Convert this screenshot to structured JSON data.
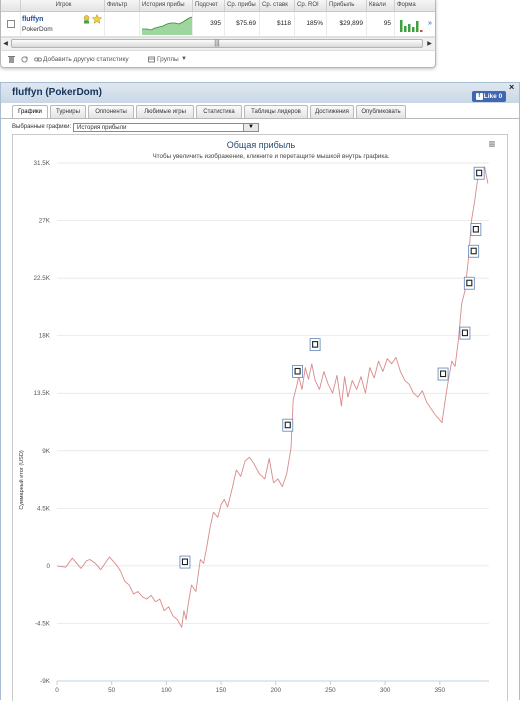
{
  "grid": {
    "headers": [
      "Игрок",
      "Фильтр",
      "История прибы",
      "Подсчет",
      "Ср. прибы",
      "Ср. ставк",
      "Ср. ROI",
      "Прибыль",
      "Квали",
      "Форма"
    ],
    "row": {
      "player_name": "fluffyn",
      "room": "PokerDom",
      "count": "395",
      "avg_profit": "$75.69",
      "avg_stake": "$118",
      "avg_roi": "185%",
      "profit": "$29,899",
      "quali": "95"
    },
    "scroll_thumb": "|||",
    "footer": {
      "add_stats": "Добавить другую статистику",
      "groups": "Группы"
    },
    "colors": {
      "profit_green": "#3fa03f"
    }
  },
  "panel": {
    "title": "fluffyn (PokerDom)",
    "like_label": "Like 0",
    "close_glyph": "×",
    "tabs": [
      "Графики",
      "Турниры",
      "Оппоненты",
      "Любимые игры",
      "Статистика",
      "Таблицы лидеров",
      "Достижения",
      "Опубликовать"
    ],
    "active_tab": 0,
    "select_label": "Выбранные графики:",
    "select_value": "История прибыли",
    "menu_glyph": "≡"
  },
  "chart_data": {
    "type": "line",
    "title": "Общая прибыль",
    "subtitle": "Чтобы увеличить изображение, кликните и перетащите мышкой внутрь графика.",
    "xlabel": "",
    "ylabel": "Суммарный итог (USD)",
    "xlim": [
      0,
      395
    ],
    "ylim": [
      -9000,
      31500
    ],
    "x_ticks": [
      0,
      50,
      100,
      150,
      200,
      250,
      300,
      350
    ],
    "y_ticks": [
      -9000,
      -4500,
      0,
      4500,
      9000,
      13500,
      18000,
      22500,
      27000,
      31500
    ],
    "y_tick_labels": [
      "-9K",
      "-4.5K",
      "0",
      "4.5K",
      "9K",
      "13.5K",
      "18K",
      "22.5K",
      "27K",
      "31.5K"
    ],
    "series": [
      {
        "color": "#d98a8a",
        "points": [
          [
            0,
            0
          ],
          [
            8,
            -100
          ],
          [
            14,
            600
          ],
          [
            18,
            200
          ],
          [
            22,
            -200
          ],
          [
            27,
            400
          ],
          [
            30,
            500
          ],
          [
            35,
            200
          ],
          [
            40,
            -300
          ],
          [
            44,
            200
          ],
          [
            48,
            700
          ],
          [
            52,
            300
          ],
          [
            55,
            0
          ],
          [
            58,
            -400
          ],
          [
            62,
            -1200
          ],
          [
            66,
            -1500
          ],
          [
            70,
            -2200
          ],
          [
            74,
            -2000
          ],
          [
            78,
            -2400
          ],
          [
            82,
            -2600
          ],
          [
            86,
            -2300
          ],
          [
            90,
            -2800
          ],
          [
            94,
            -2600
          ],
          [
            98,
            -3500
          ],
          [
            102,
            -3200
          ],
          [
            106,
            -3900
          ],
          [
            110,
            -4200
          ],
          [
            114,
            -4800
          ],
          [
            116,
            -3500
          ],
          [
            118,
            -4200
          ],
          [
            120,
            -3000
          ],
          [
            123,
            -1500
          ],
          [
            127,
            -2000
          ],
          [
            131,
            500
          ],
          [
            134,
            200
          ],
          [
            137,
            1500
          ],
          [
            140,
            3000
          ],
          [
            143,
            4200
          ],
          [
            147,
            3800
          ],
          [
            150,
            4800
          ],
          [
            153,
            5200
          ],
          [
            156,
            4600
          ],
          [
            160,
            6000
          ],
          [
            164,
            7500
          ],
          [
            168,
            7000
          ],
          [
            172,
            8200
          ],
          [
            176,
            8500
          ],
          [
            180,
            8000
          ],
          [
            185,
            7200
          ],
          [
            190,
            6800
          ],
          [
            194,
            8400
          ],
          [
            198,
            6500
          ],
          [
            202,
            6800
          ],
          [
            206,
            6200
          ],
          [
            210,
            7200
          ],
          [
            214,
            9200
          ],
          [
            216,
            13000
          ],
          [
            219,
            14000
          ],
          [
            221,
            14800
          ],
          [
            224,
            13800
          ],
          [
            227,
            15500
          ],
          [
            230,
            14600
          ],
          [
            233,
            15800
          ],
          [
            236,
            14500
          ],
          [
            240,
            13800
          ],
          [
            244,
            15200
          ],
          [
            248,
            14200
          ],
          [
            252,
            13500
          ],
          [
            256,
            14900
          ],
          [
            260,
            12500
          ],
          [
            263,
            14800
          ],
          [
            266,
            13200
          ],
          [
            270,
            14500
          ],
          [
            274,
            13800
          ],
          [
            278,
            14800
          ],
          [
            282,
            13500
          ],
          [
            286,
            15500
          ],
          [
            290,
            14700
          ],
          [
            294,
            16000
          ],
          [
            298,
            15200
          ],
          [
            302,
            16200
          ],
          [
            306,
            15800
          ],
          [
            310,
            16300
          ],
          [
            314,
            15200
          ],
          [
            318,
            14500
          ],
          [
            322,
            14200
          ],
          [
            326,
            13500
          ],
          [
            330,
            13200
          ],
          [
            334,
            13700
          ],
          [
            338,
            12800
          ],
          [
            342,
            12300
          ],
          [
            346,
            11800
          ],
          [
            350,
            11400
          ],
          [
            352,
            11200
          ],
          [
            355,
            13000
          ],
          [
            358,
            14600
          ],
          [
            361,
            16000
          ],
          [
            364,
            15600
          ],
          [
            367,
            17700
          ],
          [
            370,
            20500
          ],
          [
            373,
            21500
          ],
          [
            376,
            23800
          ],
          [
            379,
            27000
          ],
          [
            382,
            28600
          ],
          [
            385,
            30500
          ],
          [
            388,
            31000
          ],
          [
            391,
            31200
          ],
          [
            394,
            29900
          ]
        ]
      }
    ],
    "markers": [
      [
        117,
        300
      ],
      [
        211,
        11000
      ],
      [
        220,
        15200
      ],
      [
        236,
        17300
      ],
      [
        353,
        15000
      ],
      [
        373,
        18200
      ],
      [
        377,
        22100
      ],
      [
        381,
        24600
      ],
      [
        383,
        26300
      ],
      [
        386,
        30700
      ]
    ],
    "grid": true
  }
}
